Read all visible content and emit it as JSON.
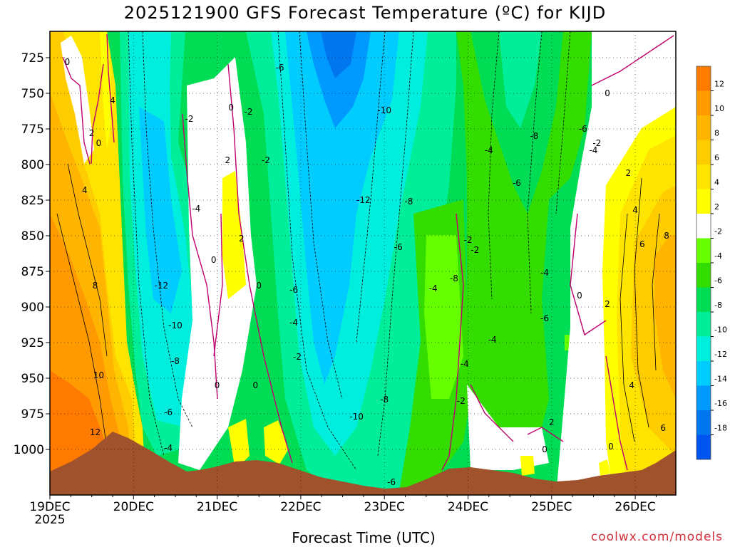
{
  "title": "2025121900 GFS Forecast Temperature (ºC) for KIJD",
  "credit": "coolwx.com/models",
  "colors": {
    "pos12": "#ff7a00",
    "pos10": "#ff9a00",
    "pos8": "#ffb400",
    "pos6": "#ffcc00",
    "pos4": "#ffe400",
    "pos2": "#ffff00",
    "zero": "#ffffff",
    "neg2": "#66ff00",
    "neg4": "#33dd00",
    "neg6": "#00dd55",
    "neg8": "#00ee99",
    "neg10": "#00eedd",
    "neg12": "#00ccff",
    "neg14": "#0099ff",
    "neg16": "#0077ee",
    "neg18": "#0055ee",
    "terrain": "#a0522d",
    "zeroline": "#c0006f"
  },
  "chart_data": {
    "type": "heatmap",
    "title": "2025121900 GFS Forecast Temperature (ºC) for KIJD",
    "xlabel": "Forecast Time (UTC)",
    "ylabel": "",
    "x_ticks": [
      "19DEC\n2025",
      "20DEC",
      "21DEC",
      "22DEC",
      "23DEC",
      "24DEC",
      "25DEC",
      "26DEC"
    ],
    "y_ticks": [
      725,
      750,
      775,
      800,
      825,
      850,
      875,
      900,
      925,
      950,
      975,
      1000
    ],
    "y_axis": "pressure (hPa), inverted",
    "colorbar_levels": [
      12,
      10,
      8,
      6,
      4,
      2,
      -2,
      -4,
      -6,
      -8,
      -10,
      -12,
      -14,
      -16,
      -18
    ],
    "contour_labels": [
      {
        "label": "0",
        "t": "19DEC 05Z",
        "p": 728
      },
      {
        "label": "4",
        "t": "19DEC 18Z",
        "p": 755
      },
      {
        "label": "2",
        "t": "19DEC 12Z",
        "p": 778
      },
      {
        "label": "0",
        "t": "19DEC 14Z",
        "p": 785
      },
      {
        "label": "4",
        "t": "19DEC 10Z",
        "p": 818
      },
      {
        "label": "8",
        "t": "19DEC 13Z",
        "p": 885
      },
      {
        "label": "10",
        "t": "19DEC 14Z",
        "p": 948
      },
      {
        "label": "12",
        "t": "19DEC 13Z",
        "p": 988
      },
      {
        "label": "-6",
        "t": "21DEC 18Z",
        "p": 732
      },
      {
        "label": "-2",
        "t": "20DEC 16Z",
        "p": 768
      },
      {
        "label": "0",
        "t": "21DEC 04Z",
        "p": 760
      },
      {
        "label": "-2",
        "t": "21DEC 09Z",
        "p": 763
      },
      {
        "label": "2",
        "t": "21DEC 03Z",
        "p": 797
      },
      {
        "label": "-2",
        "t": "21DEC 14Z",
        "p": 797
      },
      {
        "label": "-4",
        "t": "20DEC 18Z",
        "p": 831
      },
      {
        "label": "-10",
        "t": "23DEC 00Z",
        "p": 762
      },
      {
        "label": "-12",
        "t": "22DEC 18Z",
        "p": 825
      },
      {
        "label": "-8",
        "t": "23DEC 07Z",
        "p": 826
      },
      {
        "label": "2",
        "t": "21DEC 07Z",
        "p": 852
      },
      {
        "label": "0",
        "t": "20DEC 23Z",
        "p": 867
      },
      {
        "label": "-6",
        "t": "23DEC 04Z",
        "p": 858
      },
      {
        "label": "-12",
        "t": "20DEC 08Z",
        "p": 885
      },
      {
        "label": "0",
        "t": "21DEC 12Z",
        "p": 885
      },
      {
        "label": "-6",
        "t": "21DEC 22Z",
        "p": 888
      },
      {
        "label": "-10",
        "t": "20DEC 12Z",
        "p": 913
      },
      {
        "label": "-4",
        "t": "21DEC 22Z",
        "p": 911
      },
      {
        "label": "-8",
        "t": "20DEC 12Z",
        "p": 938
      },
      {
        "label": "-2",
        "t": "21DEC 23Z",
        "p": 935
      },
      {
        "label": "0",
        "t": "21DEC 00Z",
        "p": 955
      },
      {
        "label": "0",
        "t": "21DEC 11Z",
        "p": 955
      },
      {
        "label": "-6",
        "t": "20DEC 10Z",
        "p": 974
      },
      {
        "label": "-4",
        "t": "20DEC 10Z",
        "p": 999
      },
      {
        "label": "-10",
        "t": "22DEC 16Z",
        "p": 977
      },
      {
        "label": "-8",
        "t": "23DEC 00Z",
        "p": 965
      },
      {
        "label": "-6",
        "t": "23DEC 02Z",
        "p": 1023
      },
      {
        "label": "-4",
        "t": "23DEC 14Z",
        "p": 887
      },
      {
        "label": "-8",
        "t": "23DEC 20Z",
        "p": 880
      },
      {
        "label": "-2",
        "t": "24DEC 00Z",
        "p": 853
      },
      {
        "label": "-2",
        "t": "24DEC 02Z",
        "p": 860
      },
      {
        "label": "-4",
        "t": "24DEC 06Z",
        "p": 790
      },
      {
        "label": "-6",
        "t": "24DEC 14Z",
        "p": 813
      },
      {
        "label": "-8",
        "t": "24DEC 19Z",
        "p": 780
      },
      {
        "label": "-6",
        "t": "25DEC 09Z",
        "p": 775
      },
      {
        "label": "-2",
        "t": "25DEC 13Z",
        "p": 785
      },
      {
        "label": "-4",
        "t": "25DEC 12Z",
        "p": 790
      },
      {
        "label": "-4",
        "t": "24DEC 07Z",
        "p": 923
      },
      {
        "label": "-4",
        "t": "23DEC 23Z",
        "p": 940
      },
      {
        "label": "-2",
        "t": "23DEC 22Z",
        "p": 966
      },
      {
        "label": "-4",
        "t": "24DEC 22Z",
        "p": 876
      },
      {
        "label": "-6",
        "t": "24DEC 22Z",
        "p": 908
      },
      {
        "label": "2",
        "t": "25DEC 00Z",
        "p": 981
      },
      {
        "label": "0",
        "t": "24DEC 22Z",
        "p": 1000
      },
      {
        "label": "0",
        "t": "25DEC 08Z",
        "p": 892
      },
      {
        "label": "0",
        "t": "25DEC 16Z",
        "p": 750
      },
      {
        "label": "2",
        "t": "25DEC 22Z",
        "p": 806
      },
      {
        "label": "4",
        "t": "26DEC 00Z",
        "p": 832
      },
      {
        "label": "6",
        "t": "26DEC 02Z",
        "p": 856
      },
      {
        "label": "8",
        "t": "26DEC 09Z",
        "p": 850
      },
      {
        "label": "2",
        "t": "25DEC 16Z",
        "p": 898
      },
      {
        "label": "4",
        "t": "25DEC 23Z",
        "p": 955
      },
      {
        "label": "6",
        "t": "26DEC 08Z",
        "p": 985
      },
      {
        "label": "0",
        "t": "25DEC 17Z",
        "p": 998
      }
    ]
  }
}
